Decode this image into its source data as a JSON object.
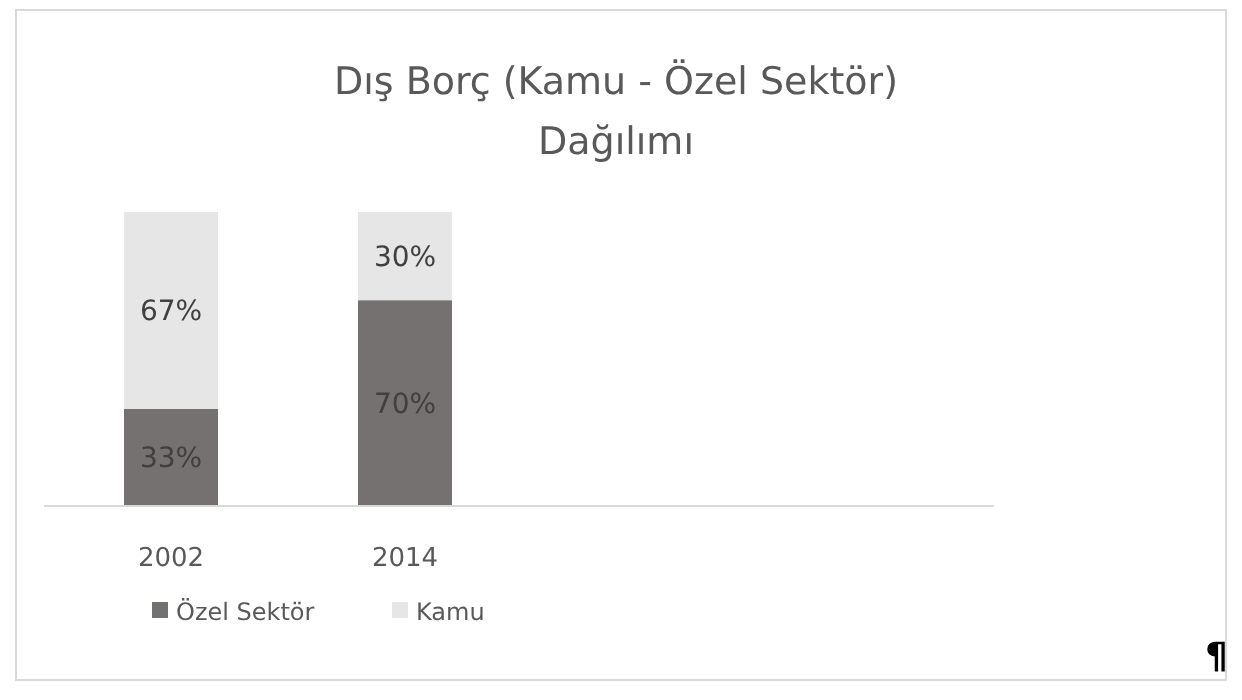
{
  "chart_data": {
    "type": "bar",
    "title": "Dış Borç (Kamu - Özel Sektör) Dağılımı",
    "categories": [
      "2002",
      "2014"
    ],
    "stacked": true,
    "legend": "bottom",
    "grid": false,
    "series": [
      {
        "name": "Özel Sektör",
        "color": "#757171",
        "values": [
          33,
          70
        ],
        "value_labels": [
          "33%",
          "70%"
        ]
      },
      {
        "name": "Kamu",
        "color": "#e7e6e6",
        "values": [
          67,
          30
        ],
        "value_labels": [
          "67%",
          "30%"
        ]
      }
    ],
    "annotations": [
      "¶"
    ]
  }
}
